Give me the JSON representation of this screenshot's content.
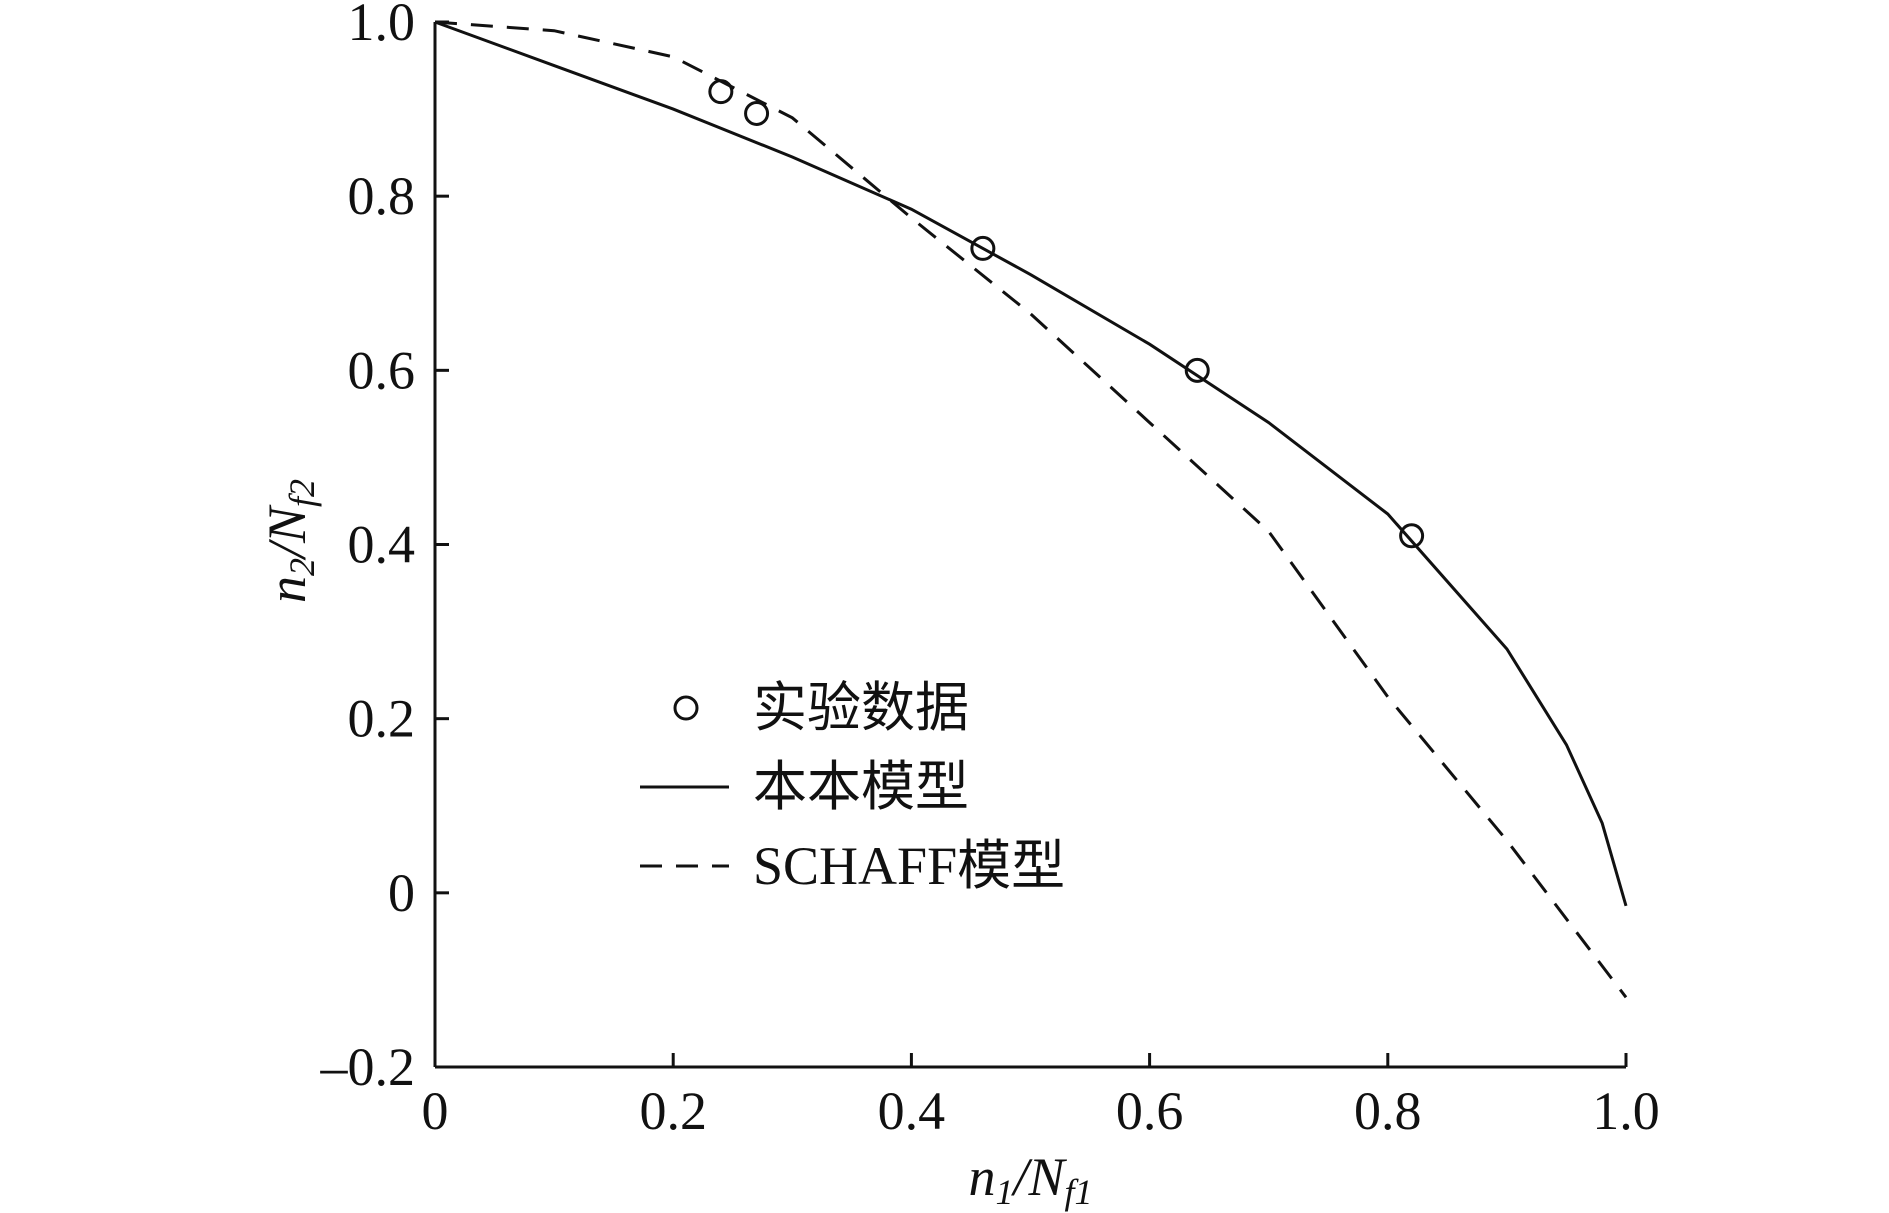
{
  "chart_data": {
    "type": "line",
    "x_label": [
      {
        "text": "n"
      },
      {
        "text": "1",
        "sub": true
      },
      {
        "text": "/N"
      },
      {
        "text": "f1",
        "sub": true
      }
    ],
    "y_label": [
      {
        "text": "n"
      },
      {
        "text": "2",
        "sub": true
      },
      {
        "text": "/N"
      },
      {
        "text": "f2",
        "sub": true
      }
    ],
    "xlim": [
      0,
      1
    ],
    "ylim": [
      -0.2,
      1
    ],
    "xticks": [
      0,
      0.2,
      0.4,
      0.6,
      0.8,
      {
        "value": 1,
        "label": "1.0"
      }
    ],
    "yticks": [
      {
        "value": -0.2,
        "label": "–0.2"
      },
      0,
      0.2,
      0.4,
      0.6,
      0.8,
      {
        "value": 1,
        "label": "1.0"
      }
    ],
    "series": [
      {
        "name": "实验数据",
        "color": "#111111",
        "style": "marker",
        "x": [
          0.24,
          0.27,
          0.46,
          0.64,
          0.82
        ],
        "values": [
          0.92,
          0.895,
          0.74,
          0.6,
          0.41
        ]
      },
      {
        "name": "本本模型",
        "color": "#111111",
        "style": "solid",
        "x": [
          0,
          0.1,
          0.2,
          0.3,
          0.4,
          0.5,
          0.6,
          0.7,
          0.8,
          0.9,
          0.95,
          0.98,
          1.0
        ],
        "values": [
          1,
          0.95,
          0.9,
          0.845,
          0.785,
          0.71,
          0.63,
          0.54,
          0.435,
          0.28,
          0.17,
          0.08,
          -0.015
        ]
      },
      {
        "name": "SCHAFF模型",
        "color": "#111111",
        "style": "dashed",
        "x": [
          0,
          0.1,
          0.2,
          0.3,
          0.4,
          0.5,
          0.6,
          0.7,
          0.8,
          0.9,
          1.0
        ],
        "values": [
          1,
          0.99,
          0.96,
          0.89,
          0.775,
          0.665,
          0.54,
          0.415,
          0.225,
          0.06,
          -0.12
        ]
      }
    ]
  }
}
